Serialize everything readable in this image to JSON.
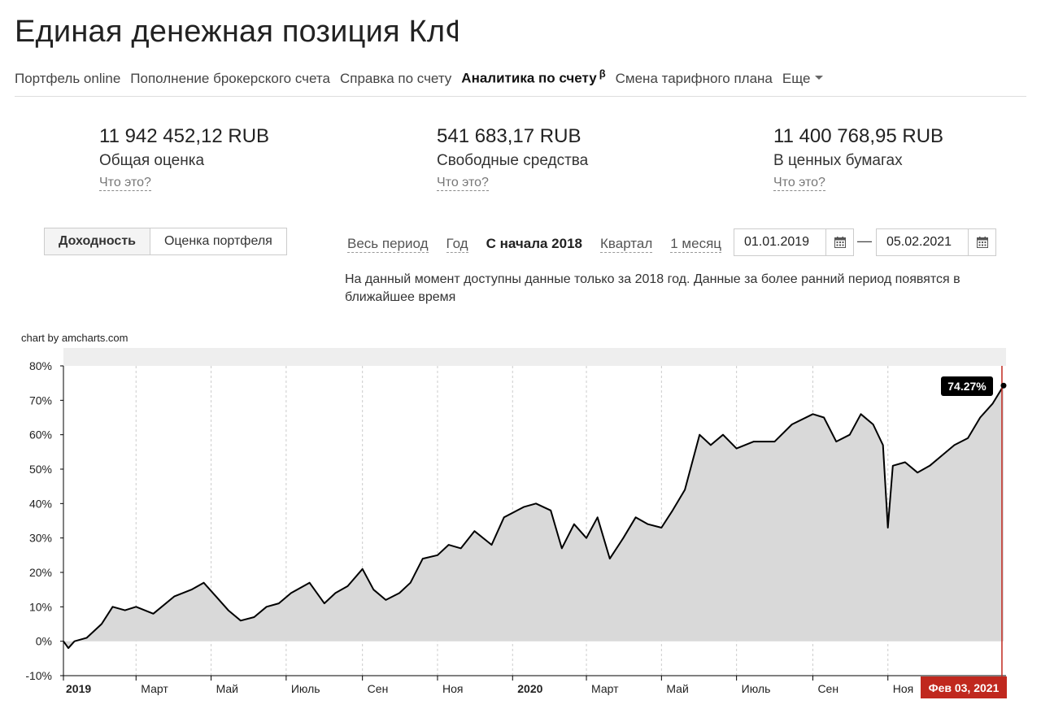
{
  "page": {
    "title": "Единая денежная позиция КлФ-"
  },
  "nav": {
    "items": [
      {
        "label": "Портфель online"
      },
      {
        "label": "Пополнение брокерского счета"
      },
      {
        "label": "Справка по счету"
      },
      {
        "label": "Аналитика по счету",
        "sup": "β",
        "active": true
      },
      {
        "label": "Смена тарифного плана"
      },
      {
        "label": "Еще"
      }
    ]
  },
  "summary": [
    {
      "amount": "11 942 452,12 RUB",
      "label": "Общая оценка",
      "help": "Что это?"
    },
    {
      "amount": "541 683,17 RUB",
      "label": "Свободные средства",
      "help": "Что это?"
    },
    {
      "amount": "11 400 768,95 RUB",
      "label": "В ценных бумагах",
      "help": "Что это?"
    }
  ],
  "view_toggle": {
    "active": "Доходность",
    "other": "Оценка портфеля"
  },
  "periods": [
    "Весь период",
    "Год",
    "С начала 2018",
    "Квартал",
    "1 месяц"
  ],
  "active_period": "С начала 2018",
  "date_range": {
    "from": "01.01.2019",
    "to": "05.02.2021",
    "separator": "—"
  },
  "notice": "На данный момент доступны данные только за 2018 год. Данные за более ранний период появятся в ближайшее время",
  "chart_credit": "chart by amcharts.com",
  "colors": {
    "area_fill": "#d9d9d9",
    "line": "#000000",
    "cursor": "#c0281e",
    "tooltip_bg": "#000000",
    "scrollbar": "#eeeeee"
  },
  "chart_data": {
    "type": "area",
    "y_unit": "%",
    "ylim": [
      -10,
      80
    ],
    "y_ticks": [
      "80%",
      "70%",
      "60%",
      "50%",
      "40%",
      "30%",
      "20%",
      "10%",
      "0%",
      "-10%"
    ],
    "x_ticks": [
      "2019",
      "Март",
      "Май",
      "Июль",
      "Сен",
      "Ноя",
      "2020",
      "Март",
      "Май",
      "Июль",
      "Сен",
      "Ноя"
    ],
    "x_ticks_bold": [
      "2019",
      "2020"
    ],
    "cursor_label": "Фев 03, 2021",
    "tooltip_value": "74.27%",
    "series": [
      {
        "x": [
          "2019-01-01",
          "2019-01-05",
          "2019-01-10",
          "2019-01-20",
          "2019-02-01",
          "2019-02-10",
          "2019-02-20",
          "2019-03-01",
          "2019-03-15",
          "2019-04-01",
          "2019-04-15",
          "2019-04-25",
          "2019-05-05",
          "2019-05-15",
          "2019-05-25",
          "2019-06-05",
          "2019-06-15",
          "2019-06-25",
          "2019-07-05",
          "2019-07-20",
          "2019-08-01",
          "2019-08-10",
          "2019-08-20",
          "2019-09-01",
          "2019-09-10",
          "2019-09-20",
          "2019-10-01",
          "2019-10-10",
          "2019-10-20",
          "2019-11-01",
          "2019-11-10",
          "2019-11-20",
          "2019-12-01",
          "2019-12-15",
          "2019-12-25",
          "2020-01-10",
          "2020-01-20",
          "2020-02-01",
          "2020-02-10",
          "2020-02-20",
          "2020-03-01",
          "2020-03-10",
          "2020-03-20",
          "2020-03-31",
          "2020-04-10",
          "2020-04-20",
          "2020-05-01",
          "2020-05-10",
          "2020-05-20",
          "2020-06-01",
          "2020-06-10",
          "2020-06-20",
          "2020-07-01",
          "2020-07-15",
          "2020-08-01",
          "2020-08-15",
          "2020-09-01",
          "2020-09-10",
          "2020-09-20",
          "2020-10-01",
          "2020-10-10",
          "2020-10-20",
          "2020-10-28",
          "2020-11-01",
          "2020-11-05",
          "2020-11-15",
          "2020-11-25",
          "2020-12-05",
          "2020-12-15",
          "2020-12-25",
          "2021-01-05",
          "2021-01-15",
          "2021-01-25",
          "2021-02-03"
        ],
        "y": [
          0,
          -2,
          0,
          1,
          5,
          10,
          9,
          10,
          8,
          13,
          15,
          17,
          13,
          9,
          6,
          7,
          10,
          11,
          14,
          17,
          11,
          14,
          16,
          21,
          15,
          12,
          14,
          17,
          24,
          25,
          28,
          27,
          32,
          28,
          36,
          39,
          40,
          38,
          27,
          34,
          30,
          36,
          24,
          30,
          36,
          34,
          33,
          38,
          44,
          60,
          57,
          60,
          56,
          58,
          58,
          63,
          66,
          65,
          58,
          60,
          66,
          63,
          57,
          33,
          51,
          52,
          49,
          51,
          54,
          57,
          59,
          65,
          69,
          74.27
        ]
      }
    ]
  }
}
